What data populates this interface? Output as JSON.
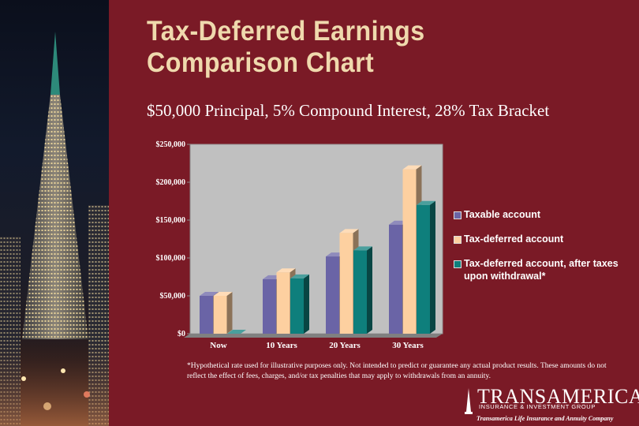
{
  "slide": {
    "title_line1": "Tax-Deferred Earnings",
    "title_line2": "Comparison Chart",
    "subtitle": "$50,000 Principal, 5% Compound Interest, 28% Tax Bracket",
    "footnote": "*Hypothetical rate used for illustrative purposes only. Not intended to predict or guarantee any actual product results. These amounts do not reflect the effect of fees, charges, and/or tax penalties that may apply to withdrawals from an annuity."
  },
  "brand": {
    "name": "TRANSAMERICA",
    "sub": "INSURANCE & INVESTMENT GROUP",
    "tagline": "Transamerica Life Insurance and Annuity Company"
  },
  "colors": {
    "background": "#7a1a26",
    "title": "#efd9ad",
    "chart_panel": "#c0c0c0"
  },
  "photo": {
    "icon": "skyscraper-photo"
  },
  "chart_data": {
    "type": "bar",
    "style": "3d",
    "categories": [
      "Now",
      "10 Years",
      "20 Years",
      "30 Years"
    ],
    "series": [
      {
        "name": "Taxable account",
        "color": "#6a64a6",
        "values": [
          50000,
          72000,
          102000,
          144000
        ]
      },
      {
        "name": "Tax-deferred account",
        "color": "#fdd0a0",
        "values": [
          50000,
          81000,
          133000,
          217000
        ]
      },
      {
        "name": "Tax-deferred account, after taxes upon withdrawal*",
        "color": "#0e7f7c",
        "values": [
          0,
          73000,
          110000,
          170000
        ]
      }
    ],
    "ytick_labels": [
      "$0",
      "$50,000",
      "$100,000",
      "$150,000",
      "$200,000",
      "$250,000"
    ],
    "yticks": [
      0,
      50000,
      100000,
      150000,
      200000,
      250000
    ],
    "ylim": [
      0,
      250000
    ],
    "grid": false,
    "legend_position": "right"
  }
}
